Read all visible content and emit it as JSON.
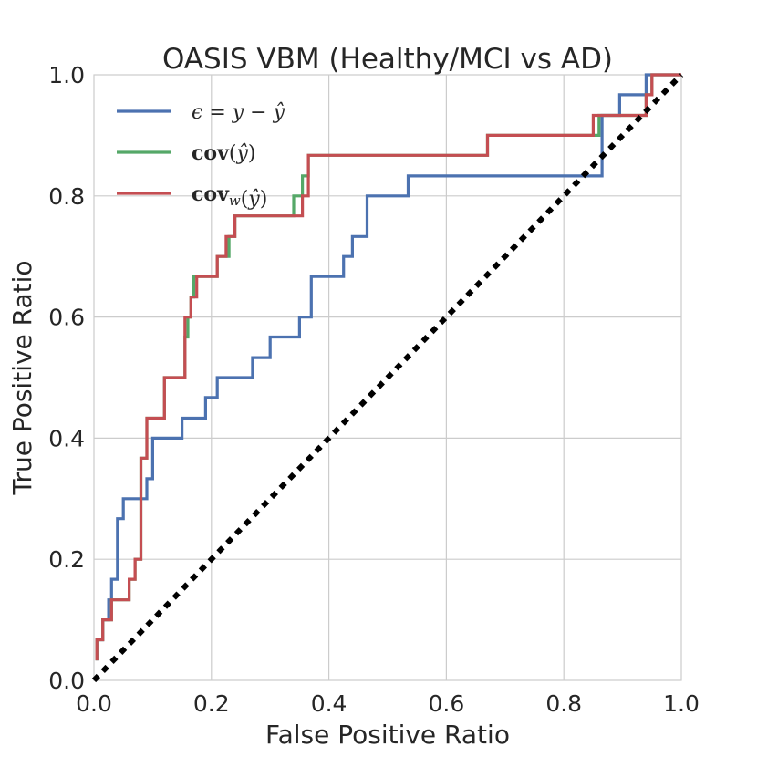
{
  "chart_data": {
    "type": "line",
    "title": "OASIS VBM (Healthy/MCI vs AD)",
    "xlabel": "False Positive Ratio",
    "ylabel": "True Positive Ratio",
    "xlim": [
      0.0,
      1.0
    ],
    "ylim": [
      0.0,
      1.0
    ],
    "xticks": [
      "0.0",
      "0.2",
      "0.4",
      "0.6",
      "0.8",
      "1.0"
    ],
    "yticks": [
      "0.0",
      "0.2",
      "0.4",
      "0.6",
      "0.8",
      "1.0"
    ],
    "grid": true,
    "legend_position": "upper-left",
    "diagonal": {
      "name": "chance",
      "x": [
        0,
        1
      ],
      "y": [
        0,
        1
      ],
      "color": "#000000"
    },
    "series": [
      {
        "name": "ε = y − ŷ",
        "legend_parts": [
          {
            "t": "ϵ",
            "s": "it"
          },
          {
            "t": " = ",
            "s": ""
          },
          {
            "t": "y",
            "s": "it"
          },
          {
            "t": " − ",
            "s": ""
          },
          {
            "t": "ŷ",
            "s": "it"
          }
        ],
        "color": "#4c72b0",
        "x": [
          0.005,
          0.005,
          0.015,
          0.015,
          0.025,
          0.025,
          0.03,
          0.03,
          0.04,
          0.04,
          0.05,
          0.05,
          0.06,
          0.06,
          0.09,
          0.09,
          0.1,
          0.1,
          0.15,
          0.15,
          0.19,
          0.19,
          0.21,
          0.21,
          0.27,
          0.27,
          0.3,
          0.3,
          0.35,
          0.35,
          0.37,
          0.37,
          0.425,
          0.425,
          0.44,
          0.44,
          0.465,
          0.465,
          0.535,
          0.535,
          0.865,
          0.865,
          0.895,
          0.895,
          0.94,
          0.94,
          1.0
        ],
        "y": [
          0.033,
          0.067,
          0.067,
          0.1,
          0.1,
          0.133,
          0.133,
          0.167,
          0.167,
          0.267,
          0.267,
          0.3,
          0.3,
          0.3,
          0.3,
          0.333,
          0.333,
          0.4,
          0.4,
          0.433,
          0.433,
          0.467,
          0.467,
          0.5,
          0.5,
          0.533,
          0.533,
          0.567,
          0.567,
          0.6,
          0.6,
          0.667,
          0.667,
          0.7,
          0.7,
          0.733,
          0.733,
          0.8,
          0.8,
          0.833,
          0.833,
          0.933,
          0.933,
          0.967,
          0.967,
          1.0,
          1.0
        ]
      },
      {
        "name": "cov(ŷ)",
        "legend_parts": [
          {
            "t": "cov",
            "s": "bold"
          },
          {
            "t": "(",
            "s": ""
          },
          {
            "t": "ŷ",
            "s": "it"
          },
          {
            "t": ")",
            "s": ""
          }
        ],
        "color": "#55a868",
        "x": [
          0.005,
          0.005,
          0.015,
          0.015,
          0.03,
          0.03,
          0.06,
          0.06,
          0.07,
          0.07,
          0.08,
          0.08,
          0.09,
          0.09,
          0.12,
          0.12,
          0.155,
          0.155,
          0.16,
          0.16,
          0.165,
          0.165,
          0.17,
          0.17,
          0.21,
          0.21,
          0.23,
          0.23,
          0.24,
          0.24,
          0.34,
          0.34,
          0.355,
          0.355,
          0.365,
          0.365,
          0.67,
          0.67,
          0.855,
          0.855,
          0.86,
          0.86,
          0.94,
          0.94,
          0.95,
          0.95,
          1.0
        ],
        "y": [
          0.033,
          0.067,
          0.067,
          0.1,
          0.1,
          0.133,
          0.133,
          0.167,
          0.167,
          0.2,
          0.2,
          0.367,
          0.367,
          0.433,
          0.433,
          0.5,
          0.5,
          0.567,
          0.567,
          0.6,
          0.6,
          0.633,
          0.633,
          0.667,
          0.667,
          0.7,
          0.7,
          0.733,
          0.733,
          0.767,
          0.767,
          0.8,
          0.8,
          0.833,
          0.833,
          0.867,
          0.867,
          0.9,
          0.9,
          0.9,
          0.9,
          0.933,
          0.933,
          0.967,
          0.967,
          1.0,
          1.0
        ]
      },
      {
        "name": "cov_w(ŷ)",
        "legend_parts": [
          {
            "t": "cov",
            "s": "bold"
          },
          {
            "t": "w",
            "s": "it-sub"
          },
          {
            "t": "(",
            "s": ""
          },
          {
            "t": "ŷ",
            "s": "it"
          },
          {
            "t": ")",
            "s": ""
          }
        ],
        "color": "#c44e52",
        "x": [
          0.005,
          0.005,
          0.015,
          0.015,
          0.03,
          0.03,
          0.06,
          0.06,
          0.07,
          0.07,
          0.08,
          0.08,
          0.09,
          0.09,
          0.12,
          0.12,
          0.155,
          0.155,
          0.165,
          0.165,
          0.175,
          0.175,
          0.21,
          0.21,
          0.225,
          0.225,
          0.24,
          0.24,
          0.345,
          0.345,
          0.355,
          0.355,
          0.365,
          0.365,
          0.67,
          0.67,
          0.85,
          0.85,
          0.94,
          0.94,
          0.95,
          0.95,
          1.0
        ],
        "y": [
          0.033,
          0.067,
          0.067,
          0.1,
          0.1,
          0.133,
          0.133,
          0.167,
          0.167,
          0.2,
          0.2,
          0.367,
          0.367,
          0.433,
          0.433,
          0.5,
          0.5,
          0.6,
          0.6,
          0.633,
          0.633,
          0.667,
          0.667,
          0.7,
          0.7,
          0.733,
          0.733,
          0.767,
          0.767,
          0.767,
          0.767,
          0.8,
          0.8,
          0.867,
          0.867,
          0.9,
          0.9,
          0.933,
          0.933,
          0.967,
          0.967,
          1.0,
          1.0
        ]
      }
    ]
  }
}
